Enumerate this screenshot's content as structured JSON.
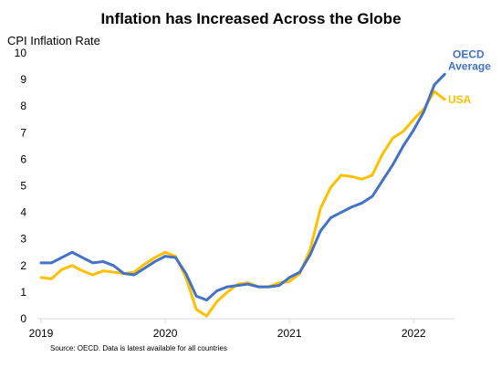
{
  "chart_data": {
    "type": "line",
    "title": "Inflation has Increased Across the Globe",
    "ylabel": "CPI Inflation Rate",
    "xlabel": "",
    "source_note": "Source: OECD. Data is latest available for all countries",
    "ylim": [
      0,
      10
    ],
    "yticks": [
      "0",
      "1",
      "2",
      "3",
      "4",
      "5",
      "6",
      "7",
      "8",
      "9",
      "10"
    ],
    "xtick_labels": [
      "2019",
      "2020",
      "2021",
      "2022"
    ],
    "xlim": [
      "2019-01",
      "2022-05"
    ],
    "grid": false,
    "legend": "inline labels at line ends",
    "x": [
      "2019-01",
      "2019-02",
      "2019-03",
      "2019-04",
      "2019-05",
      "2019-06",
      "2019-07",
      "2019-08",
      "2019-09",
      "2019-10",
      "2019-11",
      "2019-12",
      "2020-01",
      "2020-02",
      "2020-03",
      "2020-04",
      "2020-05",
      "2020-06",
      "2020-07",
      "2020-08",
      "2020-09",
      "2020-10",
      "2020-11",
      "2020-12",
      "2021-01",
      "2021-02",
      "2021-03",
      "2021-04",
      "2021-05",
      "2021-06",
      "2021-07",
      "2021-08",
      "2021-09",
      "2021-10",
      "2021-11",
      "2021-12",
      "2022-01",
      "2022-02",
      "2022-03",
      "2022-04"
    ],
    "series": [
      {
        "name": "OECD Average",
        "label_lines": [
          "OECD",
          "Average"
        ],
        "color": "#4472C4",
        "values": [
          2.1,
          2.1,
          2.3,
          2.5,
          2.3,
          2.1,
          2.15,
          2.0,
          1.7,
          1.65,
          1.9,
          2.15,
          2.35,
          2.3,
          1.7,
          0.85,
          0.7,
          1.05,
          1.2,
          1.25,
          1.3,
          1.2,
          1.2,
          1.25,
          1.55,
          1.75,
          2.4,
          3.3,
          3.8,
          4.0,
          4.2,
          4.35,
          4.6,
          5.2,
          5.8,
          6.5,
          7.1,
          7.8,
          8.8,
          9.2
        ]
      },
      {
        "name": "USA",
        "label_lines": [
          "USA"
        ],
        "color": "#FFC000",
        "values": [
          1.55,
          1.5,
          1.85,
          2.0,
          1.8,
          1.65,
          1.8,
          1.75,
          1.7,
          1.75,
          2.05,
          2.3,
          2.5,
          2.35,
          1.55,
          0.35,
          0.1,
          0.65,
          1.0,
          1.3,
          1.35,
          1.2,
          1.2,
          1.35,
          1.4,
          1.7,
          2.6,
          4.15,
          4.95,
          5.4,
          5.35,
          5.25,
          5.4,
          6.2,
          6.8,
          7.05,
          7.5,
          7.9,
          8.55,
          8.25
        ]
      }
    ]
  }
}
